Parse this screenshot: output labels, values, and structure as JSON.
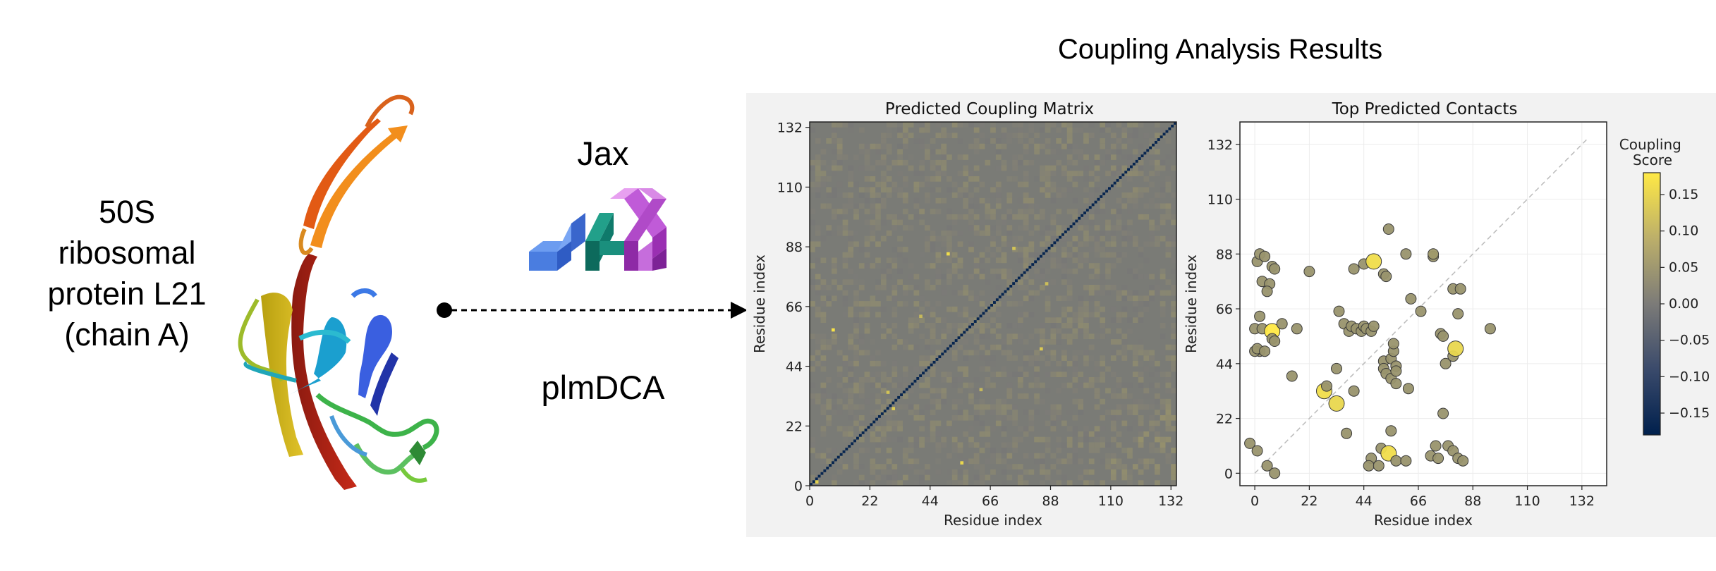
{
  "protein": {
    "lines": [
      "50S",
      "ribosomal",
      "protein L21",
      "(chain A)"
    ]
  },
  "method": {
    "framework": "Jax",
    "algorithm": "plmDCA"
  },
  "results": {
    "title": "Coupling Analysis Results"
  },
  "colors": {
    "cmap_low": "#00204d",
    "cmap_mid": "#7c7b78",
    "cmap_high": "#ffe945",
    "matrix_bg": "#7a7b76",
    "panel_bg": "#f2f2f2",
    "jax_blue": "#4a7de0",
    "jax_teal": "#0f7a6b",
    "jax_purple": "#c05bd8"
  },
  "chart_data": [
    {
      "type": "heatmap",
      "title": "Predicted Coupling Matrix",
      "xlabel": "Residue index",
      "ylabel": "Residue index",
      "xticks": [
        0,
        22,
        44,
        66,
        88,
        110,
        132
      ],
      "yticks": [
        0,
        22,
        44,
        66,
        88,
        110,
        132
      ],
      "xlim": [
        0,
        134
      ],
      "ylim": [
        0,
        134
      ],
      "diagonal_value": -0.17,
      "highlights": [
        {
          "i": 8,
          "j": 57,
          "value": 0.17
        },
        {
          "i": 55,
          "j": 8,
          "value": 0.15
        },
        {
          "i": 50,
          "j": 85,
          "value": 0.16
        },
        {
          "i": 30,
          "j": 28,
          "value": 0.13
        },
        {
          "i": 28,
          "j": 34,
          "value": 0.12
        },
        {
          "i": 84,
          "j": 50,
          "value": 0.13
        },
        {
          "i": 74,
          "j": 87,
          "value": 0.12
        },
        {
          "i": 86,
          "j": 74,
          "value": 0.11
        },
        {
          "i": 62,
          "j": 35,
          "value": 0.1
        },
        {
          "i": 40,
          "j": 62,
          "value": 0.1
        },
        {
          "i": 2,
          "j": 1,
          "value": 0.14
        }
      ]
    },
    {
      "type": "scatter",
      "title": "Top Predicted Contacts",
      "xlabel": "Residue index",
      "ylabel": "Residue index",
      "xticks": [
        0,
        22,
        44,
        66,
        88,
        110,
        132
      ],
      "yticks": [
        0,
        22,
        44,
        66,
        88,
        110,
        132
      ],
      "xlim": [
        -6,
        142
      ],
      "ylim": [
        -5,
        141
      ],
      "colorbar": {
        "label": "Coupling\nScore",
        "ticks": [
          0.15,
          0.1,
          0.05,
          0.0,
          -0.05,
          -0.1,
          -0.15
        ],
        "tick_labels": [
          "0.15",
          "0.10",
          "0.05",
          "0.00",
          "−0.05",
          "−0.10",
          "−0.15"
        ],
        "range": [
          -0.18,
          0.18
        ]
      },
      "points": [
        {
          "x": 1,
          "y": 85,
          "score": 0.04
        },
        {
          "x": 2,
          "y": 88,
          "score": 0.04
        },
        {
          "x": 4,
          "y": 87,
          "score": 0.04
        },
        {
          "x": 7,
          "y": 83,
          "score": 0.04
        },
        {
          "x": 8,
          "y": 82,
          "score": 0.04
        },
        {
          "x": 3,
          "y": 77,
          "score": 0.04
        },
        {
          "x": 6,
          "y": 76,
          "score": 0.04
        },
        {
          "x": 5,
          "y": 73,
          "score": 0.04
        },
        {
          "x": 2,
          "y": 63,
          "score": 0.04
        },
        {
          "x": 0,
          "y": 58,
          "score": 0.04
        },
        {
          "x": 3,
          "y": 58,
          "score": 0.04
        },
        {
          "x": 7,
          "y": 57,
          "score": 0.18
        },
        {
          "x": 2,
          "y": 49,
          "score": 0.04
        },
        {
          "x": 0,
          "y": 49,
          "score": 0.04
        },
        {
          "x": 1,
          "y": 50,
          "score": 0.04
        },
        {
          "x": 4,
          "y": 49,
          "score": 0.04
        },
        {
          "x": 7,
          "y": 54,
          "score": 0.04
        },
        {
          "x": 8,
          "y": 53,
          "score": 0.04
        },
        {
          "x": 11,
          "y": 60,
          "score": 0.04
        },
        {
          "x": 15,
          "y": 39,
          "score": 0.04
        },
        {
          "x": 17,
          "y": 58,
          "score": 0.04
        },
        {
          "x": 22,
          "y": 81,
          "score": 0.04
        },
        {
          "x": 28,
          "y": 33,
          "score": 0.16
        },
        {
          "x": 29,
          "y": 35,
          "score": 0.04
        },
        {
          "x": 33,
          "y": 28,
          "score": 0.15
        },
        {
          "x": 33,
          "y": 42,
          "score": 0.04
        },
        {
          "x": 34,
          "y": 65,
          "score": 0.04
        },
        {
          "x": 36,
          "y": 60,
          "score": 0.04
        },
        {
          "x": 37,
          "y": 16,
          "score": 0.04
        },
        {
          "x": 40,
          "y": 33,
          "score": 0.04
        },
        {
          "x": 38,
          "y": 57,
          "score": 0.04
        },
        {
          "x": 39,
          "y": 59,
          "score": 0.04
        },
        {
          "x": 41,
          "y": 58,
          "score": 0.04
        },
        {
          "x": 43,
          "y": 57,
          "score": 0.04
        },
        {
          "x": 44,
          "y": 59,
          "score": 0.04
        },
        {
          "x": 45,
          "y": 58,
          "score": 0.04
        },
        {
          "x": 47,
          "y": 57,
          "score": 0.04
        },
        {
          "x": 48,
          "y": 59,
          "score": 0.04
        },
        {
          "x": 40,
          "y": 82,
          "score": 0.04
        },
        {
          "x": 44,
          "y": 84,
          "score": 0.04
        },
        {
          "x": 48,
          "y": 85,
          "score": 0.16
        },
        {
          "x": 52,
          "y": 80,
          "score": 0.04
        },
        {
          "x": 53,
          "y": 79,
          "score": 0.04
        },
        {
          "x": 54,
          "y": 98,
          "score": 0.04
        },
        {
          "x": 47,
          "y": 6,
          "score": 0.04
        },
        {
          "x": 46,
          "y": 3,
          "score": 0.04
        },
        {
          "x": 50,
          "y": 3,
          "score": 0.04
        },
        {
          "x": 51,
          "y": 10,
          "score": 0.04
        },
        {
          "x": 54,
          "y": 8,
          "score": 0.16
        },
        {
          "x": 55,
          "y": 17,
          "score": 0.04
        },
        {
          "x": 57,
          "y": 5,
          "score": 0.04
        },
        {
          "x": 52,
          "y": 45,
          "score": 0.04
        },
        {
          "x": 52,
          "y": 42,
          "score": 0.04
        },
        {
          "x": 53,
          "y": 40,
          "score": 0.04
        },
        {
          "x": 55,
          "y": 46,
          "score": 0.04
        },
        {
          "x": 56,
          "y": 49,
          "score": 0.04
        },
        {
          "x": 55,
          "y": 38,
          "score": 0.04
        },
        {
          "x": 57,
          "y": 36,
          "score": 0.04
        },
        {
          "x": 57,
          "y": 43,
          "score": 0.04
        },
        {
          "x": 57,
          "y": 41,
          "score": 0.04
        },
        {
          "x": 56,
          "y": 52,
          "score": 0.04
        },
        {
          "x": 61,
          "y": 5,
          "score": 0.04
        },
        {
          "x": 61,
          "y": 88,
          "score": 0.04
        },
        {
          "x": 62,
          "y": 34,
          "score": 0.04
        },
        {
          "x": 63,
          "y": 70,
          "score": 0.04
        },
        {
          "x": 67,
          "y": 65,
          "score": 0.04
        },
        {
          "x": 71,
          "y": 7,
          "score": 0.04
        },
        {
          "x": 72,
          "y": 87,
          "score": 0.04
        },
        {
          "x": 72,
          "y": 88,
          "score": 0.05
        },
        {
          "x": 73,
          "y": 11,
          "score": 0.04
        },
        {
          "x": 74,
          "y": 6,
          "score": 0.04
        },
        {
          "x": 75,
          "y": 56,
          "score": 0.04
        },
        {
          "x": 76,
          "y": 55,
          "score": 0.04
        },
        {
          "x": 76,
          "y": 24,
          "score": 0.04
        },
        {
          "x": 77,
          "y": 44,
          "score": 0.04
        },
        {
          "x": 78,
          "y": 11,
          "score": 0.04
        },
        {
          "x": 80,
          "y": 9,
          "score": 0.04
        },
        {
          "x": 80,
          "y": 47,
          "score": 0.04
        },
        {
          "x": 81,
          "y": 50,
          "score": 0.15
        },
        {
          "x": 80,
          "y": 74,
          "score": 0.04
        },
        {
          "x": 83,
          "y": 74,
          "score": 0.04
        },
        {
          "x": 82,
          "y": 64,
          "score": 0.04
        },
        {
          "x": 82,
          "y": 6,
          "score": 0.04
        },
        {
          "x": 84,
          "y": 5,
          "score": 0.04
        },
        {
          "x": 95,
          "y": 58,
          "score": 0.04
        },
        {
          "x": -2,
          "y": 12,
          "score": 0.04
        },
        {
          "x": 1,
          "y": 9,
          "score": 0.04
        },
        {
          "x": 5,
          "y": 3,
          "score": 0.04
        },
        {
          "x": 8,
          "y": 0,
          "score": 0.04
        }
      ]
    }
  ]
}
